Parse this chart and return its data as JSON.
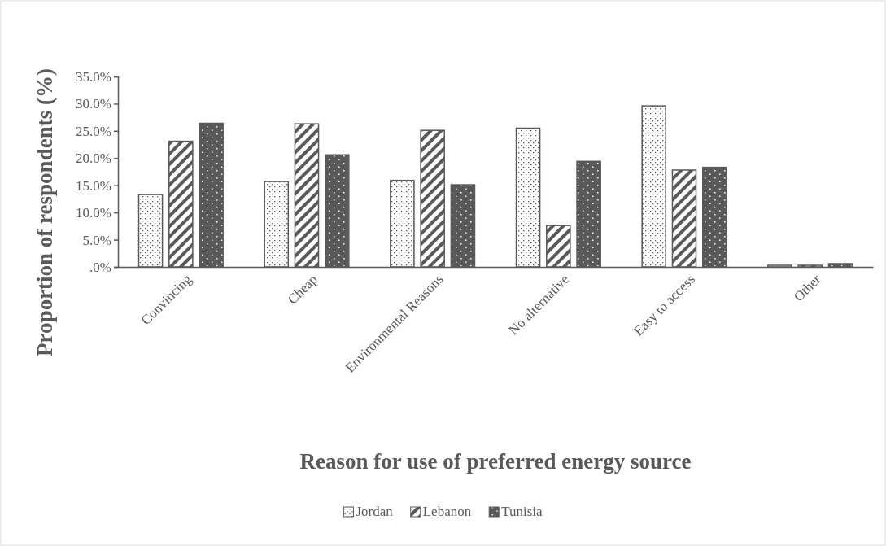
{
  "chart_data": {
    "type": "bar",
    "xlabel": "Reason for use of preferred energy source",
    "ylabel": "Proportion of respondents (%)",
    "categories": [
      "Convincing",
      "Cheap",
      "Environmental Reasons",
      "No alternative",
      "Easy to access",
      "Other"
    ],
    "series": [
      {
        "name": "Jordan",
        "color": "#595959",
        "values": [
          13.3,
          15.7,
          15.9,
          25.5,
          29.6,
          0.3
        ]
      },
      {
        "name": "Lebanon",
        "color": "#595959",
        "values": [
          23.1,
          26.3,
          25.1,
          7.6,
          17.8,
          0.3
        ]
      },
      {
        "name": "Tunisia",
        "color": "#595959",
        "values": [
          26.4,
          20.6,
          15.1,
          19.4,
          18.3,
          0.6
        ]
      }
    ],
    "ylim": [
      0,
      35
    ],
    "yticks": [
      {
        "value": 0,
        "label": ".0%"
      },
      {
        "value": 5,
        "label": "5.0%"
      },
      {
        "value": 10,
        "label": "10.0%"
      },
      {
        "value": 15,
        "label": "15.0%"
      },
      {
        "value": 20,
        "label": "20.0%"
      },
      {
        "value": 25,
        "label": "25.0%"
      },
      {
        "value": 30,
        "label": "30.0%"
      },
      {
        "value": 35,
        "label": "35.0%"
      }
    ],
    "grid": false,
    "legend": "bottom"
  }
}
